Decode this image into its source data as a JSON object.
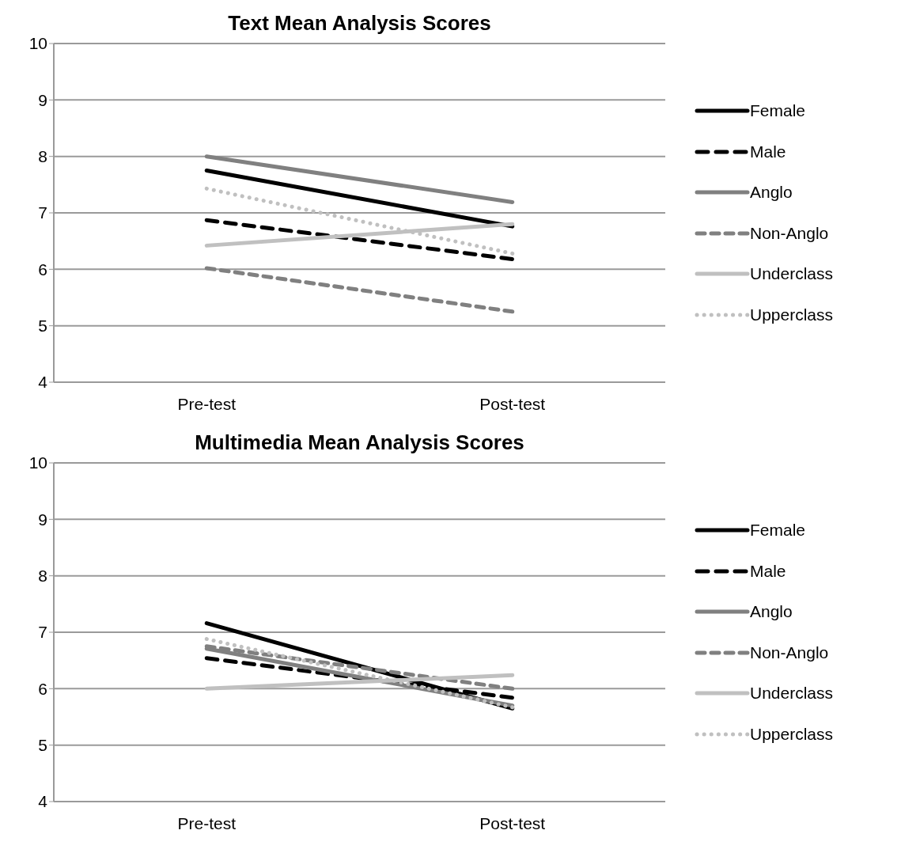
{
  "chart_data": [
    {
      "type": "line",
      "title": "Text Mean Analysis Scores",
      "categories": [
        "Pre-test",
        "Post-test"
      ],
      "ylim": [
        4,
        10
      ],
      "yticks": [
        4,
        5,
        6,
        7,
        8,
        9,
        10
      ],
      "grid": "y",
      "legend": "right",
      "marker": "none",
      "series": [
        {
          "name": "Female",
          "color": "#000000",
          "line_style": "solid",
          "values": [
            7.75,
            6.76
          ]
        },
        {
          "name": "Male",
          "color": "#000000",
          "line_style": "dashed",
          "values": [
            6.87,
            6.18
          ]
        },
        {
          "name": "Anglo",
          "color": "#808080",
          "line_style": "solid",
          "values": [
            8.0,
            7.19
          ]
        },
        {
          "name": "Non-Anglo",
          "color": "#808080",
          "line_style": "dashed",
          "values": [
            6.02,
            5.25
          ]
        },
        {
          "name": "Underclass",
          "color": "#c0c0c0",
          "line_style": "solid",
          "values": [
            6.42,
            6.8
          ]
        },
        {
          "name": "Upperclass",
          "color": "#c0c0c0",
          "line_style": "dotted",
          "values": [
            7.43,
            6.28
          ]
        }
      ]
    },
    {
      "type": "line",
      "title": "Multimedia Mean Analysis Scores",
      "categories": [
        "Pre-test",
        "Post-test"
      ],
      "ylim": [
        4,
        10
      ],
      "yticks": [
        4,
        5,
        6,
        7,
        8,
        9,
        10
      ],
      "grid": "y",
      "legend": "right",
      "marker": "none",
      "series": [
        {
          "name": "Female",
          "color": "#000000",
          "line_style": "solid",
          "values": [
            7.16,
            5.65
          ]
        },
        {
          "name": "Male",
          "color": "#000000",
          "line_style": "dashed",
          "values": [
            6.54,
            5.84
          ]
        },
        {
          "name": "Anglo",
          "color": "#808080",
          "line_style": "solid",
          "values": [
            6.71,
            5.7
          ]
        },
        {
          "name": "Non-Anglo",
          "color": "#808080",
          "line_style": "dashed",
          "values": [
            6.75,
            6.0
          ]
        },
        {
          "name": "Underclass",
          "color": "#c0c0c0",
          "line_style": "solid",
          "values": [
            6.0,
            6.24
          ]
        },
        {
          "name": "Upperclass",
          "color": "#c0c0c0",
          "line_style": "dotted",
          "values": [
            6.88,
            5.67
          ]
        }
      ]
    }
  ]
}
